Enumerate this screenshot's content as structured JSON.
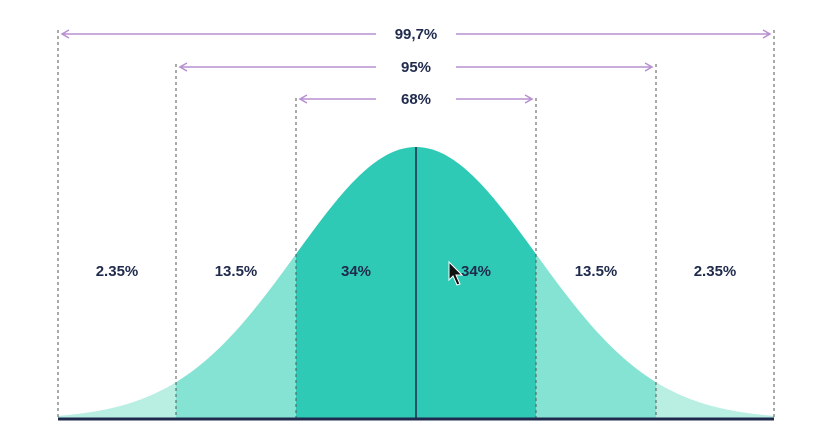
{
  "diagram": {
    "ranges": [
      {
        "label": "99,7%",
        "from_sd": -3,
        "to_sd": 3
      },
      {
        "label": "95%",
        "from_sd": -2,
        "to_sd": 2
      },
      {
        "label": "68%",
        "from_sd": -1,
        "to_sd": 1
      }
    ],
    "regions": [
      {
        "label": "2.35%",
        "from_sd": -3,
        "to_sd": -2
      },
      {
        "label": "13.5%",
        "from_sd": -2,
        "to_sd": -1
      },
      {
        "label": "34%",
        "from_sd": -1,
        "to_sd": 0
      },
      {
        "label": "34%",
        "from_sd": 0,
        "to_sd": 1
      },
      {
        "label": "13.5%",
        "from_sd": 1,
        "to_sd": 2
      },
      {
        "label": "2.35%",
        "from_sd": 2,
        "to_sd": 3
      }
    ],
    "colors": {
      "tail": "#b9efe3",
      "mid": "#84e3d2",
      "center": "#2fcab5",
      "arrow": "#b78fd0",
      "dashed": "#555555",
      "axis": "#1f2a4d",
      "text": "#1f2a4d"
    }
  }
}
